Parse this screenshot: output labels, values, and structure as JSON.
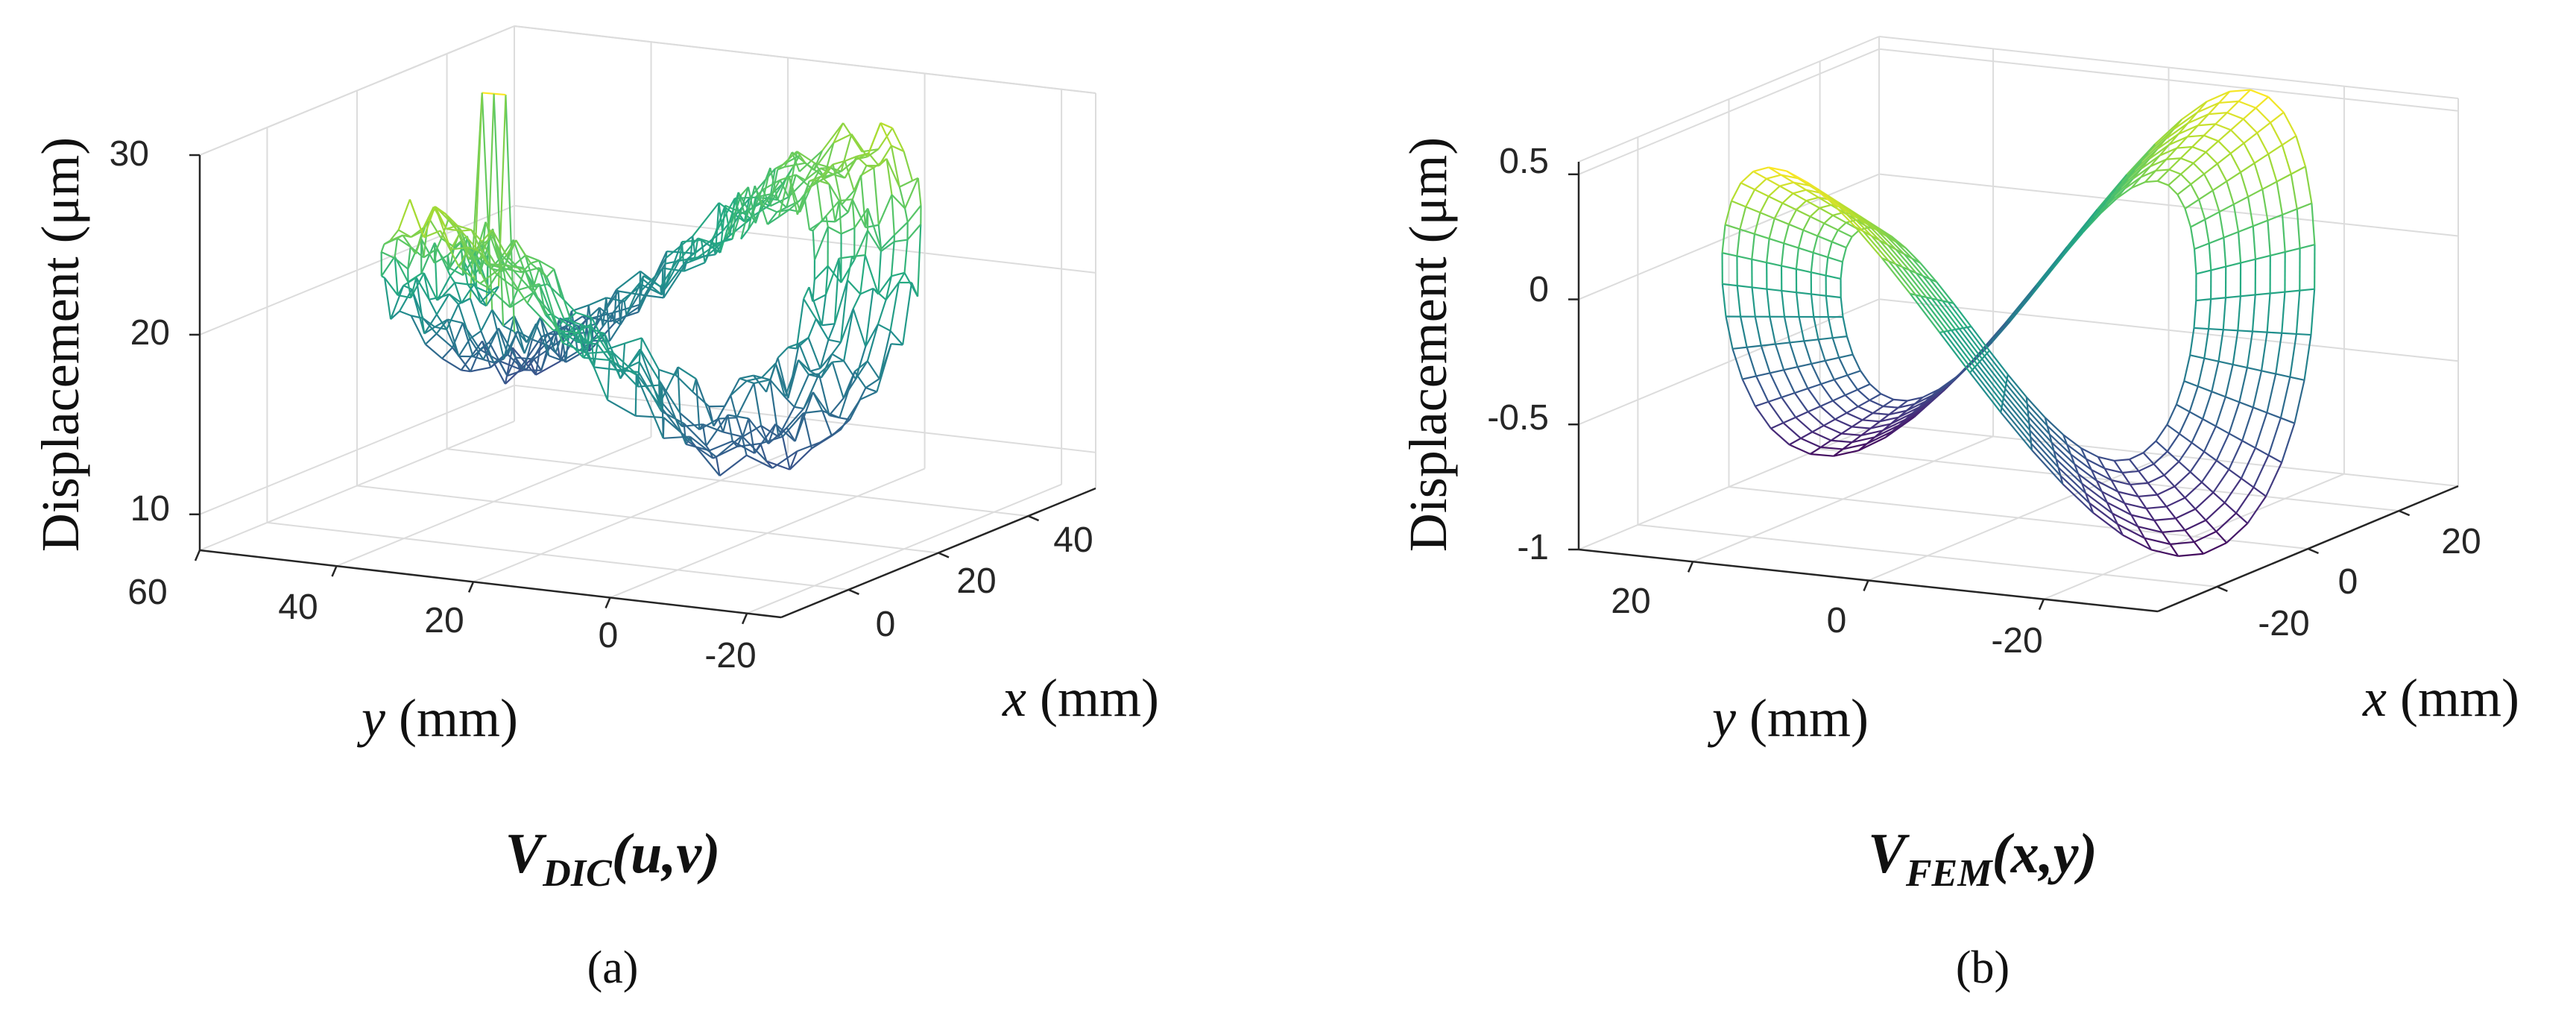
{
  "chart_data": [
    {
      "type": "surface3d",
      "id": "a",
      "title": "VDIC(u,v)",
      "title_main": "V",
      "title_subscript": "DIC",
      "title_args": "(u,v)",
      "caption": "(a)",
      "zlabel": "Displacement (μm)",
      "xlabel_var": "x",
      "xlabel_unit": " (mm)",
      "ylabel_var": "y",
      "ylabel_unit": " (mm)",
      "x_ticks": [
        "0",
        "20",
        "40"
      ],
      "y_ticks": [
        "60",
        "40",
        "20",
        "0",
        "-20"
      ],
      "z_ticks": [
        "10",
        "20",
        "30"
      ],
      "xlim": [
        -15,
        55
      ],
      "ylim": [
        -25,
        60
      ],
      "zlim": [
        8,
        30
      ],
      "surface": {
        "shape": "ring",
        "center_x": 20,
        "center_y": 17,
        "outer_radius": 33,
        "inner_radius": 20,
        "z_mean": 20.5,
        "z_amplitude": 6.5,
        "z_mode": "saddle",
        "noise": 1.4,
        "spikes": [
          {
            "angle_deg": 95,
            "z": 31
          },
          {
            "angle_deg": 250,
            "z": 17.5
          }
        ]
      },
      "colormap": "viridis",
      "grid": true
    },
    {
      "type": "surface3d",
      "id": "b",
      "title": "VFEM(x,y)",
      "title_main": "V",
      "title_subscript": "FEM",
      "title_args": "(x,y)",
      "caption": "(b)",
      "zlabel": "Displacement (μm)",
      "xlabel_var": "x",
      "xlabel_unit": " (mm)",
      "ylabel_var": "y",
      "ylabel_unit": " (mm)",
      "x_ticks": [
        "-20",
        "0",
        "20"
      ],
      "y_ticks": [
        "20",
        "0",
        "-20"
      ],
      "z_ticks": [
        "-1",
        "-0.5",
        "0",
        "0.5"
      ],
      "xlim": [
        -33,
        33
      ],
      "ylim": [
        -33,
        33
      ],
      "zlim": [
        -1,
        0.55
      ],
      "surface": {
        "shape": "ring",
        "center_x": 0,
        "center_y": 0,
        "outer_radius": 30,
        "inner_radius": 18,
        "z_mean": -0.2,
        "z_amplitude": 0.75,
        "z_mode": "saddle",
        "noise": 0,
        "spikes": []
      },
      "colormap": "viridis",
      "grid": true
    }
  ]
}
